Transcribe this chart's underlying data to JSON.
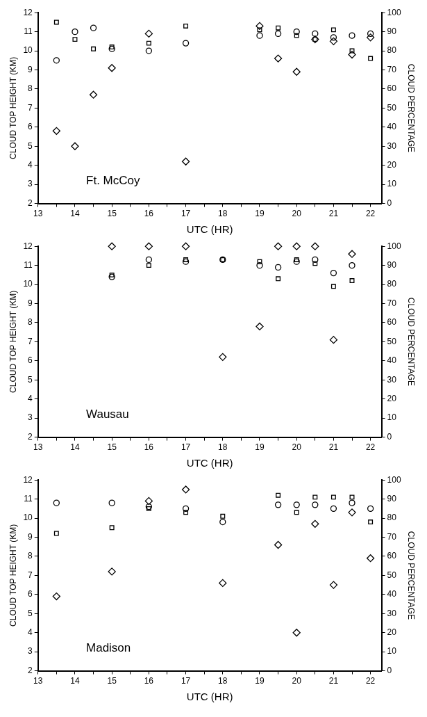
{
  "chart_data": [
    {
      "type": "scatter",
      "annotations": [
        "Ft. McCoy"
      ],
      "xlabel": "UTC (HR)",
      "ylabel": "CLOUD TOP HEIGHT (KM)",
      "y2label": "CLOUD PERCENTAGE",
      "xlim": [
        13,
        22.3
      ],
      "xticks": [
        13,
        {
          "value": 13.5,
          "label": null
        },
        14,
        {
          "value": 14.5,
          "label": null
        },
        15,
        {
          "value": 15.5,
          "label": null
        },
        16,
        {
          "value": 16.5,
          "label": null
        },
        17,
        {
          "value": 17.5,
          "label": null
        },
        18,
        {
          "value": 18.5,
          "label": null
        },
        19,
        {
          "value": 19.5,
          "label": null
        },
        20,
        {
          "value": 20.5,
          "label": null
        },
        21,
        {
          "value": 21.5,
          "label": null
        },
        22
      ],
      "ylim": [
        2,
        12
      ],
      "yticks": [
        2,
        3,
        4,
        5,
        6,
        7,
        8,
        9,
        10,
        11,
        12
      ],
      "y2lim": [
        0,
        100
      ],
      "y2ticks": [
        0,
        10,
        20,
        30,
        40,
        50,
        60,
        70,
        80,
        90,
        100
      ],
      "grid": false,
      "legend": false,
      "series": [
        {
          "color": "#000000",
          "marker": "circle",
          "x": [
            13.5,
            14,
            14.5,
            15,
            16,
            17,
            19,
            19.5,
            20,
            20.5,
            21,
            21.5,
            22
          ],
          "values": [
            9.5,
            11.0,
            11.2,
            10.1,
            10.0,
            10.4,
            10.8,
            10.9,
            11.0,
            10.9,
            10.7,
            10.8,
            10.9
          ]
        },
        {
          "color": "#000000",
          "marker": "square",
          "x": [
            13.5,
            14,
            14.5,
            15,
            16,
            17,
            19,
            19.5,
            20,
            20.5,
            21,
            21.5,
            22
          ],
          "values": [
            11.5,
            10.6,
            10.1,
            10.2,
            10.4,
            11.3,
            11.1,
            11.2,
            10.8,
            10.6,
            11.1,
            10.0,
            9.6
          ]
        },
        {
          "color": "#000000",
          "marker": "diamond",
          "axis": "y2",
          "x": [
            13.5,
            14,
            14.5,
            15,
            16,
            17,
            19,
            19.5,
            20,
            20.5,
            21,
            21.5,
            22
          ],
          "values": [
            38,
            30,
            57,
            71,
            89,
            22,
            93,
            76,
            69,
            86,
            85,
            78,
            87
          ]
        }
      ]
    },
    {
      "type": "scatter",
      "annotations": [
        "Wausau"
      ],
      "xlabel": "UTC (HR)",
      "ylabel": "CLOUD TOP HEIGHT (KM)",
      "y2label": "CLOUD PERCENTAGE",
      "xlim": [
        13,
        22.3
      ],
      "xticks": [
        13,
        {
          "value": 13.5,
          "label": null
        },
        14,
        {
          "value": 14.5,
          "label": null
        },
        15,
        {
          "value": 15.5,
          "label": null
        },
        16,
        {
          "value": 16.5,
          "label": null
        },
        17,
        {
          "value": 17.5,
          "label": null
        },
        18,
        {
          "value": 18.5,
          "label": null
        },
        19,
        {
          "value": 19.5,
          "label": null
        },
        20,
        {
          "value": 20.5,
          "label": null
        },
        21,
        {
          "value": 21.5,
          "label": null
        },
        22
      ],
      "ylim": [
        2,
        12
      ],
      "yticks": [
        2,
        3,
        4,
        5,
        6,
        7,
        8,
        9,
        10,
        11,
        12
      ],
      "y2lim": [
        0,
        100
      ],
      "y2ticks": [
        0,
        10,
        20,
        30,
        40,
        50,
        60,
        70,
        80,
        90,
        100
      ],
      "grid": false,
      "legend": false,
      "series": [
        {
          "color": "#000000",
          "marker": "circle",
          "x": [
            15,
            16,
            17,
            18,
            19,
            19.5,
            20,
            20.5,
            21,
            21.5
          ],
          "values": [
            10.4,
            11.3,
            11.2,
            11.3,
            11.0,
            10.9,
            11.2,
            11.3,
            10.6,
            11.0
          ]
        },
        {
          "color": "#000000",
          "marker": "square",
          "x": [
            15,
            16,
            17,
            18,
            19,
            19.5,
            20,
            20.5,
            21,
            21.5
          ],
          "values": [
            10.5,
            11.0,
            11.3,
            11.3,
            11.2,
            10.3,
            11.3,
            11.1,
            9.9,
            10.2
          ]
        },
        {
          "color": "#000000",
          "marker": "diamond",
          "axis": "y2",
          "x": [
            15,
            16,
            17,
            18,
            19,
            19.5,
            20,
            20.5,
            21,
            21.5
          ],
          "values": [
            100,
            100,
            100,
            42,
            58,
            100,
            100,
            100,
            51,
            96
          ]
        }
      ]
    },
    {
      "type": "scatter",
      "annotations": [
        "Madison"
      ],
      "xlabel": "UTC (HR)",
      "ylabel": "CLOUD TOP HEIGHT (KM)",
      "y2label": "CLOUD PERCENTAGE",
      "xlim": [
        13,
        22.3
      ],
      "xticks": [
        13,
        {
          "value": 13.5,
          "label": null
        },
        14,
        {
          "value": 14.5,
          "label": null
        },
        15,
        {
          "value": 15.5,
          "label": null
        },
        16,
        {
          "value": 16.5,
          "label": null
        },
        17,
        {
          "value": 17.5,
          "label": null
        },
        18,
        {
          "value": 18.5,
          "label": null
        },
        19,
        {
          "value": 19.5,
          "label": null
        },
        20,
        {
          "value": 20.5,
          "label": null
        },
        21,
        {
          "value": 21.5,
          "label": null
        },
        22
      ],
      "ylim": [
        2,
        12
      ],
      "yticks": [
        2,
        3,
        4,
        5,
        6,
        7,
        8,
        9,
        10,
        11,
        12
      ],
      "y2lim": [
        0,
        100
      ],
      "y2ticks": [
        0,
        10,
        20,
        30,
        40,
        50,
        60,
        70,
        80,
        90,
        100
      ],
      "grid": false,
      "legend": false,
      "series": [
        {
          "color": "#000000",
          "marker": "circle",
          "x": [
            13.5,
            15,
            16,
            17,
            18,
            19.5,
            20,
            20.5,
            21,
            21.5,
            22
          ],
          "values": [
            10.8,
            10.8,
            10.6,
            10.5,
            9.8,
            10.7,
            10.7,
            10.7,
            10.5,
            10.8,
            10.5
          ]
        },
        {
          "color": "#000000",
          "marker": "square",
          "x": [
            13.5,
            15,
            16,
            17,
            18,
            19.5,
            20,
            20.5,
            21,
            21.5,
            22
          ],
          "values": [
            9.2,
            9.5,
            10.5,
            10.3,
            10.1,
            11.2,
            10.3,
            11.1,
            11.1,
            11.1,
            9.8
          ]
        },
        {
          "color": "#000000",
          "marker": "diamond",
          "axis": "y2",
          "x": [
            13.5,
            15,
            16,
            17,
            18,
            19.5,
            20,
            20.5,
            21,
            21.5,
            22
          ],
          "values": [
            39,
            52,
            89,
            95,
            46,
            66,
            20,
            77,
            45,
            83,
            59
          ]
        }
      ]
    }
  ]
}
